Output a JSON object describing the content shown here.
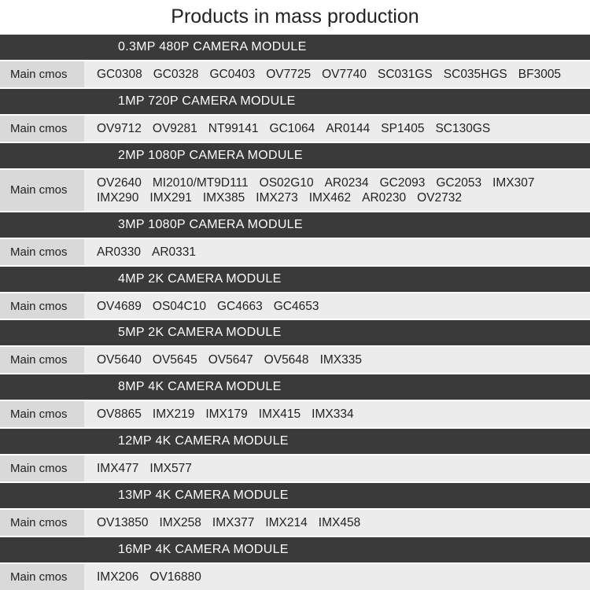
{
  "title": "Products in mass production",
  "sections": [
    {
      "header": "0.3MP 480P CAMERA MODULE",
      "label": "Main cmos",
      "lines": [
        [
          "GC0308",
          "GC0328",
          "GC0403",
          "OV7725",
          "OV7740",
          "SC031GS",
          "SC035HGS",
          "BF3005"
        ]
      ]
    },
    {
      "header": "1MP 720P CAMERA MODULE",
      "label": "Main cmos",
      "lines": [
        [
          "OV9712",
          "OV9281",
          "NT99141",
          "GC1064",
          "AR0144",
          "SP1405",
          "SC130GS"
        ]
      ]
    },
    {
      "header": "2MP 1080P CAMERA MODULE",
      "label": "Main cmos",
      "lines": [
        [
          "OV2640",
          "MI2010/MT9D111",
          "OS02G10",
          "AR0234",
          "GC2093",
          "GC2053",
          "IMX307"
        ],
        [
          "IMX290",
          "IMX291",
          "IMX385",
          "IMX273",
          "IMX462",
          "AR0230",
          "OV2732"
        ]
      ]
    },
    {
      "header": "3MP 1080P CAMERA MODULE",
      "label": "Main cmos",
      "lines": [
        [
          "AR0330",
          "AR0331"
        ]
      ]
    },
    {
      "header": "4MP 2K CAMERA MODULE",
      "label": "Main cmos",
      "lines": [
        [
          "OV4689",
          "OS04C10",
          "GC4663",
          "GC4653"
        ]
      ]
    },
    {
      "header": "5MP 2K CAMERA MODULE",
      "label": "Main cmos",
      "lines": [
        [
          "OV5640",
          "OV5645",
          "OV5647",
          "OV5648",
          "IMX335"
        ]
      ]
    },
    {
      "header": "8MP 4K CAMERA MODULE",
      "label": "Main cmos",
      "lines": [
        [
          "OV8865",
          "IMX219",
          "IMX179",
          "IMX415",
          "IMX334"
        ]
      ]
    },
    {
      "header": "12MP 4K CAMERA MODULE",
      "label": "Main cmos",
      "lines": [
        [
          "IMX477",
          "IMX577"
        ]
      ]
    },
    {
      "header": "13MP 4K CAMERA MODULE",
      "label": "Main cmos",
      "lines": [
        [
          "OV13850",
          "IMX258",
          "IMX377",
          "IMX214",
          "IMX458"
        ]
      ]
    },
    {
      "header": "16MP 4K CAMERA MODULE",
      "label": "Main cmos",
      "lines": [
        [
          "IMX206",
          "OV16880"
        ]
      ]
    }
  ]
}
